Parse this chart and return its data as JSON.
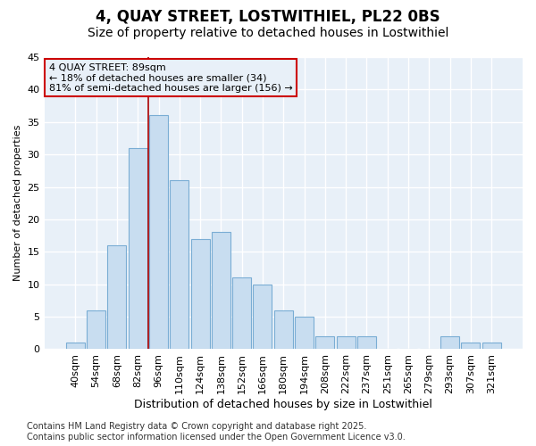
{
  "title": "4, QUAY STREET, LOSTWITHIEL, PL22 0BS",
  "subtitle": "Size of property relative to detached houses in Lostwithiel",
  "xlabel": "Distribution of detached houses by size in Lostwithiel",
  "ylabel": "Number of detached properties",
  "bar_color": "#c8ddf0",
  "bar_edge_color": "#7aadd4",
  "background_color": "#ffffff",
  "plot_bg_color": "#e8f0f8",
  "grid_color": "#ffffff",
  "categories": [
    "40sqm",
    "54sqm",
    "68sqm",
    "82sqm",
    "96sqm",
    "110sqm",
    "124sqm",
    "138sqm",
    "152sqm",
    "166sqm",
    "180sqm",
    "194sqm",
    "208sqm",
    "222sqm",
    "237sqm",
    "251sqm",
    "265sqm",
    "279sqm",
    "293sqm",
    "307sqm",
    "321sqm"
  ],
  "values": [
    1,
    6,
    16,
    31,
    36,
    26,
    17,
    18,
    11,
    10,
    6,
    5,
    2,
    2,
    2,
    0,
    0,
    0,
    2,
    1,
    1
  ],
  "ylim": [
    0,
    45
  ],
  "yticks": [
    0,
    5,
    10,
    15,
    20,
    25,
    30,
    35,
    40,
    45
  ],
  "property_line_x": 3.5,
  "property_line_color": "#aa0000",
  "annotation_text": "4 QUAY STREET: 89sqm\n← 18% of detached houses are smaller (34)\n81% of semi-detached houses are larger (156) →",
  "annotation_box_color": "#cc0000",
  "footer_text": "Contains HM Land Registry data © Crown copyright and database right 2025.\nContains public sector information licensed under the Open Government Licence v3.0.",
  "title_fontsize": 12,
  "subtitle_fontsize": 10,
  "xlabel_fontsize": 9,
  "ylabel_fontsize": 8,
  "tick_fontsize": 8,
  "annotation_fontsize": 8,
  "footer_fontsize": 7
}
